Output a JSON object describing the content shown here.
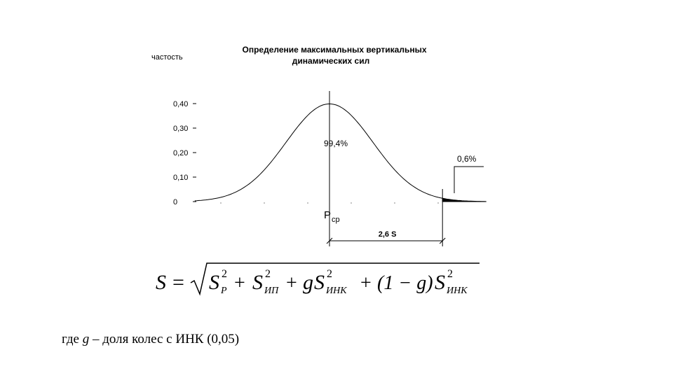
{
  "chart_data": {
    "type": "area",
    "title": "Определение максимальных вертикальных динамических сил",
    "title_lines": [
      "Определение максимальных вертикальных",
      "динамических сил"
    ],
    "ylabel": "частость",
    "ylim": [
      0,
      0.4
    ],
    "y_ticks": [
      0,
      0.1,
      0.2,
      0.3,
      0.4
    ],
    "y_tick_labels": [
      "0",
      "0,10",
      "0,20",
      "0,30",
      "0,40"
    ],
    "xlim": [
      -3.1,
      3.6
    ],
    "grid": false,
    "series": [
      {
        "values": [
          {
            "x": -3.0,
            "y": 0.004
          },
          {
            "x": -2.5,
            "y": 0.018
          },
          {
            "x": -2.0,
            "y": 0.054
          },
          {
            "x": -1.5,
            "y": 0.13
          },
          {
            "x": -1.0,
            "y": 0.242
          },
          {
            "x": -0.5,
            "y": 0.352
          },
          {
            "x": 0.0,
            "y": 0.399
          },
          {
            "x": 0.5,
            "y": 0.352
          },
          {
            "x": 1.0,
            "y": 0.242
          },
          {
            "x": 1.5,
            "y": 0.13
          },
          {
            "x": 2.0,
            "y": 0.054
          },
          {
            "x": 2.5,
            "y": 0.018
          },
          {
            "x": 2.6,
            "y": 0.014
          },
          {
            "x": 3.0,
            "y": 0.004
          },
          {
            "x": 3.5,
            "y": 0.001
          }
        ]
      }
    ],
    "mean_marker": {
      "x": 0,
      "label": "P",
      "label_sub": "ср"
    },
    "threshold_x": 2.6,
    "dimension_label": "2,6 S",
    "annotations": [
      {
        "text": "99,4%",
        "region": "central"
      },
      {
        "text": "0,6%",
        "region": "tail"
      }
    ]
  },
  "formula": {
    "lhs": "S",
    "equals": "=",
    "terms": [
      {
        "coef": "",
        "base": "S",
        "sub": "P",
        "sup": "2"
      },
      {
        "op": "+",
        "coef": "",
        "base": "S",
        "sub": "ИП",
        "sup": "2"
      },
      {
        "op": "+",
        "coef": "g",
        "base": "S",
        "sub": "ИНК",
        "sup": "2"
      },
      {
        "op": "+",
        "coef": "(1 − g)",
        "base": "S",
        "sub": "ИНК",
        "sup": "2"
      }
    ]
  },
  "note": {
    "prefix": "где ",
    "var": "g",
    "text": " – доля колес с ИНК (0,05)"
  }
}
